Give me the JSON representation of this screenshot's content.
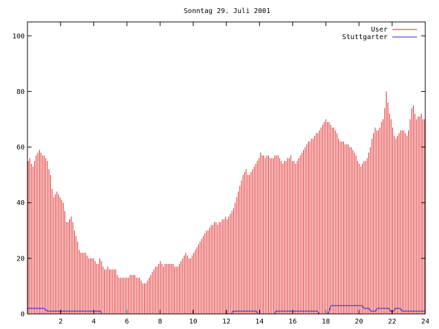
{
  "chart_data": {
    "type": "bar",
    "title": "Sonntag 29. Juli 2001",
    "xlabel": "",
    "ylabel": "",
    "xlim": [
      0,
      24
    ],
    "ylim": [
      0,
      105
    ],
    "x_ticks": [
      2,
      4,
      6,
      8,
      10,
      12,
      14,
      16,
      18,
      20,
      22,
      24
    ],
    "y_ticks": [
      0,
      20,
      40,
      60,
      80,
      100
    ],
    "grid": false,
    "legend_position": "top-right",
    "series": [
      {
        "name": "User",
        "style": "impulses",
        "color": "#e02020",
        "values": [
          55,
          56,
          54,
          53,
          55,
          57,
          58,
          59,
          58,
          57,
          57,
          56,
          55,
          52,
          50,
          45,
          42,
          43,
          44,
          43,
          42,
          41,
          40,
          37,
          33,
          33,
          34,
          35,
          33,
          30,
          28,
          26,
          23,
          22,
          22,
          22,
          22,
          21,
          20,
          20,
          20,
          20,
          19,
          18,
          18,
          20,
          19,
          17,
          16,
          16,
          17,
          16,
          16,
          16,
          16,
          16,
          14,
          13,
          13,
          13,
          13,
          13,
          13,
          13,
          14,
          14,
          14,
          14,
          13,
          13,
          13,
          12,
          11,
          11,
          11,
          12,
          13,
          14,
          15,
          16,
          17,
          17,
          18,
          19,
          18,
          17,
          18,
          18,
          18,
          18,
          18,
          18,
          17,
          17,
          17,
          18,
          19,
          20,
          21,
          22,
          21,
          20,
          20,
          21,
          22,
          23,
          24,
          25,
          26,
          27,
          28,
          29,
          30,
          30,
          31,
          32,
          32,
          33,
          33,
          32,
          33,
          33,
          34,
          34,
          35,
          34,
          35,
          36,
          37,
          38,
          40,
          42,
          44,
          46,
          48,
          50,
          51,
          52,
          50,
          50,
          51,
          52,
          53,
          54,
          55,
          56,
          58,
          57,
          57,
          56,
          57,
          57,
          56,
          56,
          56,
          57,
          57,
          57,
          56,
          55,
          54,
          55,
          55,
          56,
          56,
          57,
          55,
          55,
          54,
          55,
          56,
          57,
          58,
          59,
          60,
          61,
          62,
          62,
          63,
          63,
          64,
          65,
          65,
          66,
          67,
          68,
          69,
          70,
          69,
          69,
          68,
          67,
          67,
          66,
          65,
          63,
          62,
          62,
          62,
          61,
          61,
          61,
          60,
          60,
          59,
          58,
          57,
          55,
          54,
          53,
          54,
          55,
          55,
          56,
          58,
          60,
          63,
          65,
          67,
          66,
          66,
          67,
          69,
          70,
          74,
          80,
          76,
          72,
          70,
          67,
          64,
          63,
          64,
          65,
          66,
          66,
          66,
          65,
          64,
          66,
          70,
          74,
          75,
          72,
          70,
          71,
          71,
          72,
          70,
          70
        ]
      },
      {
        "name": "Stuttgarter",
        "style": "lines",
        "color": "#2020d0",
        "points": [
          [
            0,
            2
          ],
          [
            1,
            2
          ],
          [
            1.2,
            1
          ],
          [
            4.4,
            1
          ],
          [
            4.5,
            0
          ],
          [
            12.3,
            0
          ],
          [
            12.4,
            1
          ],
          [
            13.8,
            1
          ],
          [
            13.9,
            0
          ],
          [
            14.9,
            0
          ],
          [
            15,
            1
          ],
          [
            17.5,
            1
          ],
          [
            17.6,
            0
          ],
          [
            18.1,
            0
          ],
          [
            18.2,
            1
          ],
          [
            18.3,
            3
          ],
          [
            20.2,
            3
          ],
          [
            20.3,
            2
          ],
          [
            20.6,
            2
          ],
          [
            20.7,
            1
          ],
          [
            21,
            1
          ],
          [
            21.1,
            2
          ],
          [
            21.8,
            2
          ],
          [
            21.9,
            1
          ],
          [
            22.1,
            1
          ],
          [
            22.2,
            2
          ],
          [
            22.5,
            2
          ],
          [
            22.6,
            1
          ],
          [
            24,
            1
          ]
        ]
      }
    ]
  }
}
